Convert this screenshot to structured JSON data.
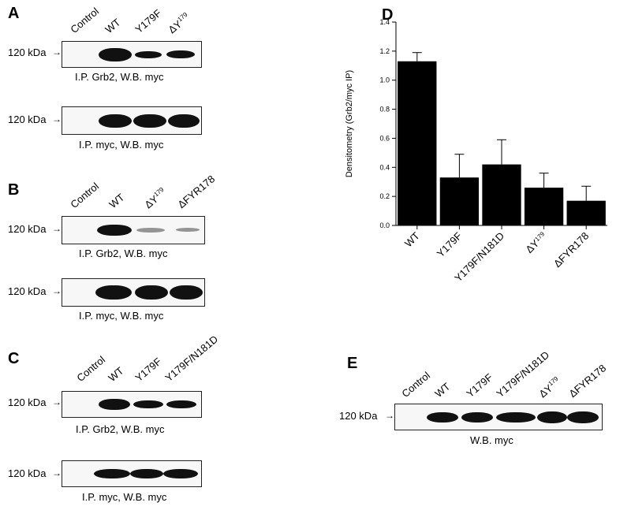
{
  "panels": {
    "A": {
      "letter": "A",
      "lanes": [
        "Control",
        "WT",
        "Y179F",
        "ΔY",
        "179"
      ],
      "blot1": {
        "marker": "120 kDa",
        "caption": "I.P. Grb2, W.B. myc"
      },
      "blot2": {
        "marker": "120 kDa",
        "caption": "I.P. myc, W.B. myc"
      }
    },
    "B": {
      "letter": "B",
      "lanes": [
        "Control",
        "WT",
        "ΔY",
        "179",
        "ΔFYR178"
      ],
      "blot1": {
        "marker": "120 kDa",
        "caption": "I.P. Grb2, W.B. myc"
      },
      "blot2": {
        "marker": "120 kDa",
        "caption": "I.P. myc, W.B. myc"
      }
    },
    "C": {
      "letter": "C",
      "lanes": [
        "Control",
        "WT",
        "Y179F",
        "Y179F/N181D"
      ],
      "blot1": {
        "marker": "120 kDa",
        "caption": "I.P. Grb2, W.B. myc"
      },
      "blot2": {
        "marker": "120 kDa",
        "caption": "I.P. myc, W.B. myc"
      }
    },
    "D": {
      "letter": "D"
    },
    "E": {
      "letter": "E",
      "lanes": [
        "Control",
        "WT",
        "Y179F",
        "Y179F/N181D",
        "ΔY",
        "179",
        "ΔFYR178"
      ],
      "blot1": {
        "marker": "120 kDa",
        "caption": "W.B. myc"
      }
    }
  },
  "chart_data": {
    "type": "bar",
    "categories": [
      "WT",
      "Y179F",
      "Y179F/N181D",
      "ΔY179",
      "ΔFYR178"
    ],
    "category_labels": [
      {
        "main": "WT",
        "sup": ""
      },
      {
        "main": "Y179F",
        "sup": ""
      },
      {
        "main": "Y179F/N181D",
        "sup": ""
      },
      {
        "main": "ΔY",
        "sup": "179"
      },
      {
        "main": "ΔFYR178",
        "sup": ""
      }
    ],
    "values": [
      1.13,
      0.33,
      0.42,
      0.26,
      0.17
    ],
    "errors": [
      0.06,
      0.16,
      0.17,
      0.1,
      0.1
    ],
    "ylabel": "Densitometry (Grb2/myc IP)",
    "ylim": [
      0,
      1.4
    ],
    "yticks": [
      "0.0",
      "0.2",
      "0.4",
      "0.6",
      "0.8",
      "1.0",
      "1.2",
      "1.4"
    ],
    "bar_color": "#000000",
    "grid": false
  }
}
